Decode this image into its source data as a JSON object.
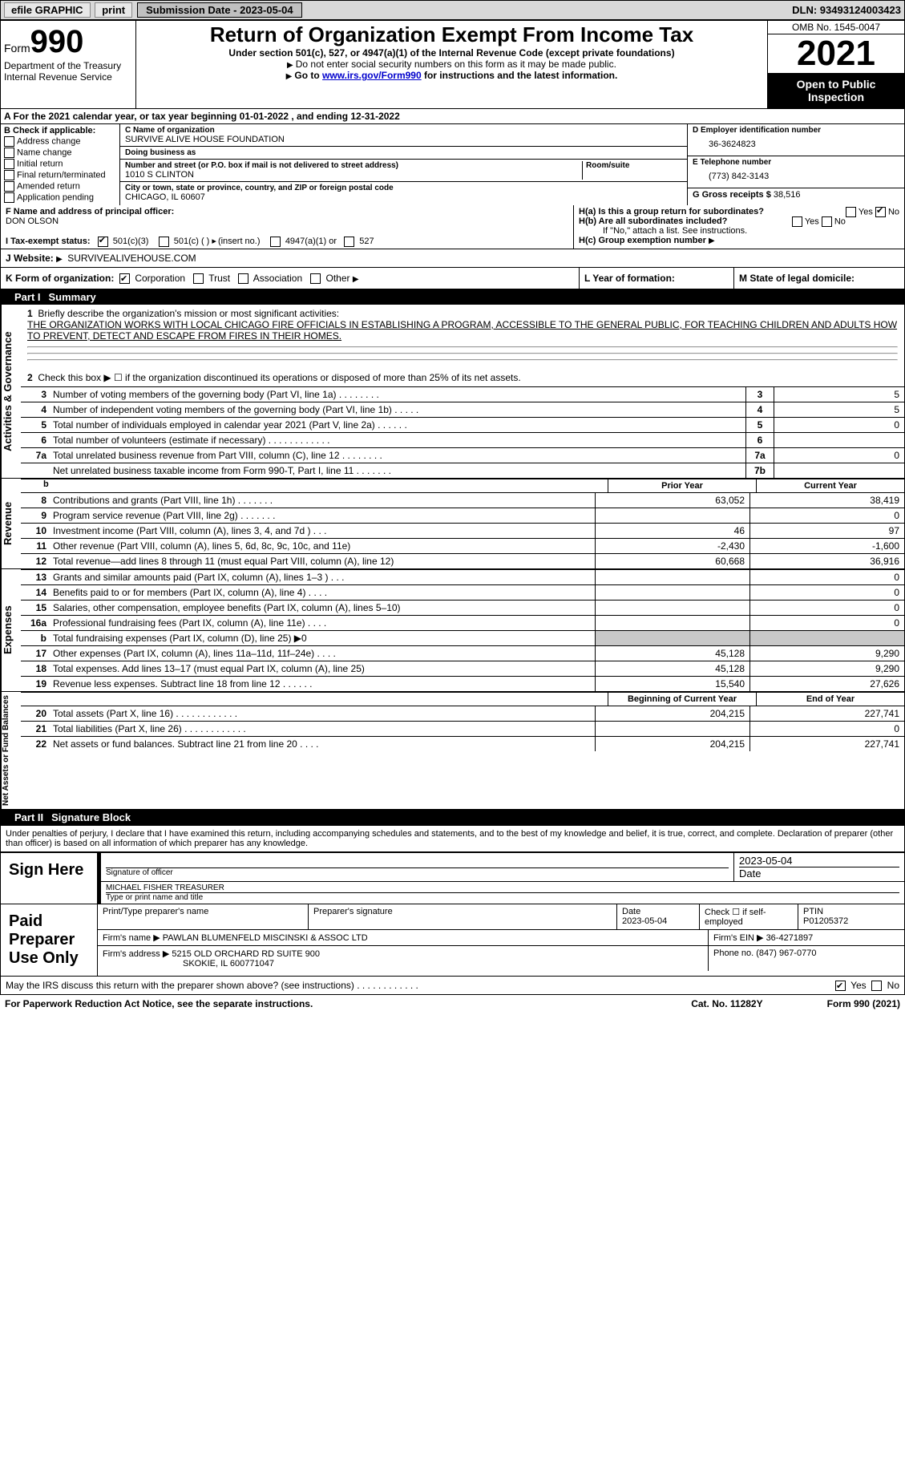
{
  "topbar": {
    "efile": "efile GRAPHIC",
    "print": "print",
    "submission": "Submission Date - 2023-05-04",
    "dln": "DLN: 93493124003423"
  },
  "header": {
    "form_prefix": "Form",
    "form_num": "990",
    "dept": "Department of the Treasury",
    "irs": "Internal Revenue Service",
    "title": "Return of Organization Exempt From Income Tax",
    "sub": "Under section 501(c), 527, or 4947(a)(1) of the Internal Revenue Code (except private foundations)",
    "ssn": "Do not enter social security numbers on this form as it may be made public.",
    "go_to_pre": "Go to ",
    "go_to_link": "www.irs.gov/Form990",
    "go_to_post": " for instructions and the latest information.",
    "omb": "OMB No. 1545-0047",
    "year": "2021",
    "open": "Open to Public Inspection"
  },
  "row_a": "A For the 2021 calendar year, or tax year beginning 01-01-2022   , and ending 12-31-2022",
  "section_b": {
    "label": "B Check if applicable:",
    "items": [
      "Address change",
      "Name change",
      "Initial return",
      "Final return/terminated",
      "Amended return",
      "Application pending"
    ]
  },
  "section_c": {
    "name_label": "C Name of organization",
    "name": "SURVIVE ALIVE HOUSE FOUNDATION",
    "dba_label": "Doing business as",
    "dba": "",
    "street_label": "Number and street (or P.O. box if mail is not delivered to street address)",
    "room_label": "Room/suite",
    "street": "1010 S CLINTON",
    "city_label": "City or town, state or province, country, and ZIP or foreign postal code",
    "city": "CHICAGO, IL  60607"
  },
  "section_d": {
    "ein_label": "D Employer identification number",
    "ein": "36-3624823",
    "phone_label": "E Telephone number",
    "phone": "(773) 842-3143",
    "gross_label": "G Gross receipts $",
    "gross": "38,516"
  },
  "section_f": {
    "label": "F Name and address of principal officer:",
    "name": "DON OLSON"
  },
  "section_h": {
    "a_label": "H(a)  Is this a group return for subordinates?",
    "yes": "Yes",
    "no": "No",
    "b_label": "H(b)  Are all subordinates included?",
    "b_note": "If \"No,\" attach a list. See instructions.",
    "c_label": "H(c)  Group exemption number"
  },
  "row_i": {
    "label": "I  Tax-exempt status:",
    "opt1": "501(c)(3)",
    "opt2": "501(c) (   )",
    "opt2_hint": "(insert no.)",
    "opt3": "4947(a)(1) or",
    "opt4": "527"
  },
  "row_j": {
    "label": "J  Website:",
    "value": "SURVIVEALIVEHOUSE.COM"
  },
  "row_k": {
    "label": "K Form of organization:",
    "opts": [
      "Corporation",
      "Trust",
      "Association",
      "Other"
    ]
  },
  "row_l": "L Year of formation:",
  "row_m": "M State of legal domicile:",
  "part1": {
    "header": "Part I",
    "title": "Summary",
    "line1_label": "Briefly describe the organization's mission or most significant activities:",
    "line1_text": "THE ORGANIZATION WORKS WITH LOCAL CHICAGO FIRE OFFICIALS IN ESTABLISHING A PROGRAM, ACCESSIBLE TO THE GENERAL PUBLIC, FOR TEACHING CHILDREN AND ADULTS HOW TO PREVENT, DETECT AND ESCAPE FROM FIRES IN THEIR HOMES.",
    "line2": "Check this box ▶ ☐ if the organization discontinued its operations or disposed of more than 25% of its net assets.",
    "lines_num": [
      {
        "n": "3",
        "d": "Number of voting members of the governing body (Part VI, line 1a)   .    .    .    .    .    .    .    .",
        "b": "3",
        "v": "5"
      },
      {
        "n": "4",
        "d": "Number of independent voting members of the governing body (Part VI, line 1b)    .    .    .    .    .",
        "b": "4",
        "v": "5"
      },
      {
        "n": "5",
        "d": "Total number of individuals employed in calendar year 2021 (Part V, line 2a)    .    .    .    .    .    .",
        "b": "5",
        "v": "0"
      },
      {
        "n": "6",
        "d": "Total number of volunteers (estimate if necessary)    .    .    .    .    .    .    .    .    .    .    .    .",
        "b": "6",
        "v": ""
      },
      {
        "n": "7a",
        "d": "Total unrelated business revenue from Part VIII, column (C), line 12    .    .    .    .    .    .    .    .",
        "b": "7a",
        "v": "0"
      },
      {
        "n": "",
        "d": "Net unrelated business taxable income from Form 990-T, Part I, line 11    .    .    .    .    .    .    .",
        "b": "7b",
        "v": ""
      }
    ],
    "col_headers": {
      "prior": "Prior Year",
      "current": "Current Year",
      "begin": "Beginning of Current Year",
      "end": "End of Year"
    },
    "revenue": [
      {
        "n": "8",
        "d": "Contributions and grants (Part VIII, line 1h)    .    .    .    .    .    .    .",
        "p": "63,052",
        "c": "38,419"
      },
      {
        "n": "9",
        "d": "Program service revenue (Part VIII, line 2g)    .    .    .    .    .    .    .",
        "p": "",
        "c": "0"
      },
      {
        "n": "10",
        "d": "Investment income (Part VIII, column (A), lines 3, 4, and 7d )    .    .    .",
        "p": "46",
        "c": "97"
      },
      {
        "n": "11",
        "d": "Other revenue (Part VIII, column (A), lines 5, 6d, 8c, 9c, 10c, and 11e)",
        "p": "-2,430",
        "c": "-1,600"
      },
      {
        "n": "12",
        "d": "Total revenue—add lines 8 through 11 (must equal Part VIII, column (A), line 12)",
        "p": "60,668",
        "c": "36,916"
      }
    ],
    "expenses": [
      {
        "n": "13",
        "d": "Grants and similar amounts paid (Part IX, column (A), lines 1–3 )    .    .    .",
        "p": "",
        "c": "0"
      },
      {
        "n": "14",
        "d": "Benefits paid to or for members (Part IX, column (A), line 4)    .    .    .    .",
        "p": "",
        "c": "0"
      },
      {
        "n": "15",
        "d": "Salaries, other compensation, employee benefits (Part IX, column (A), lines 5–10)",
        "p": "",
        "c": "0"
      },
      {
        "n": "16a",
        "d": "Professional fundraising fees (Part IX, column (A), line 11e)    .    .    .    .",
        "p": "",
        "c": "0"
      },
      {
        "n": "b",
        "d": "Total fundraising expenses (Part IX, column (D), line 25) ▶0",
        "p": "shaded",
        "c": "shaded"
      },
      {
        "n": "17",
        "d": "Other expenses (Part IX, column (A), lines 11a–11d, 11f–24e)    .    .    .    .",
        "p": "45,128",
        "c": "9,290"
      },
      {
        "n": "18",
        "d": "Total expenses. Add lines 13–17 (must equal Part IX, column (A), line 25)",
        "p": "45,128",
        "c": "9,290"
      },
      {
        "n": "19",
        "d": "Revenue less expenses. Subtract line 18 from line 12    .    .    .    .    .    .",
        "p": "15,540",
        "c": "27,626"
      }
    ],
    "netassets": [
      {
        "n": "20",
        "d": "Total assets (Part X, line 16)    .    .    .    .    .    .    .    .    .    .    .    .",
        "p": "204,215",
        "c": "227,741"
      },
      {
        "n": "21",
        "d": "Total liabilities (Part X, line 26)    .    .    .    .    .    .    .    .    .    .    .    .",
        "p": "",
        "c": "0"
      },
      {
        "n": "22",
        "d": "Net assets or fund balances. Subtract line 21 from line 20    .    .    .    .",
        "p": "204,215",
        "c": "227,741"
      }
    ],
    "side_labels": {
      "gov": "Activities & Governance",
      "rev": "Revenue",
      "exp": "Expenses",
      "net": "Net Assets or Fund Balances"
    }
  },
  "part2": {
    "header": "Part II",
    "title": "Signature Block",
    "declaration": "Under penalties of perjury, I declare that I have examined this return, including accompanying schedules and statements, and to the best of my knowledge and belief, it is true, correct, and complete. Declaration of preparer (other than officer) is based on all information of which preparer has any knowledge.",
    "sign_here": "Sign Here",
    "sig_officer": "Signature of officer",
    "sig_date": "2023-05-04",
    "officer_name": "MICHAEL FISHER  TREASURER",
    "officer_label": "Type or print name and title",
    "paid_prep": "Paid Preparer Use Only",
    "prep_name_label": "Print/Type preparer's name",
    "prep_sig_label": "Preparer's signature",
    "prep_date_label": "Date",
    "prep_date": "2023-05-04",
    "prep_check": "Check ☐ if self-employed",
    "ptin_label": "PTIN",
    "ptin": "P01205372",
    "firm_name_label": "Firm's name    ▶",
    "firm_name": "PAWLAN BLUMENFELD MISCINSKI & ASSOC LTD",
    "firm_ein_label": "Firm's EIN ▶",
    "firm_ein": "36-4271897",
    "firm_addr_label": "Firm's address ▶",
    "firm_addr1": "5215 OLD ORCHARD RD SUITE 900",
    "firm_addr2": "SKOKIE, IL  600771047",
    "firm_phone_label": "Phone no.",
    "firm_phone": "(847) 967-0770",
    "may_irs": "May the IRS discuss this return with the preparer shown above? (see instructions)    .    .    .    .    .    .    .    .    .    .    .    .",
    "yes": "Yes",
    "no": "No"
  },
  "footer": {
    "left": "For Paperwork Reduction Act Notice, see the separate instructions.",
    "center": "Cat. No. 11282Y",
    "right": "Form 990 (2021)"
  }
}
